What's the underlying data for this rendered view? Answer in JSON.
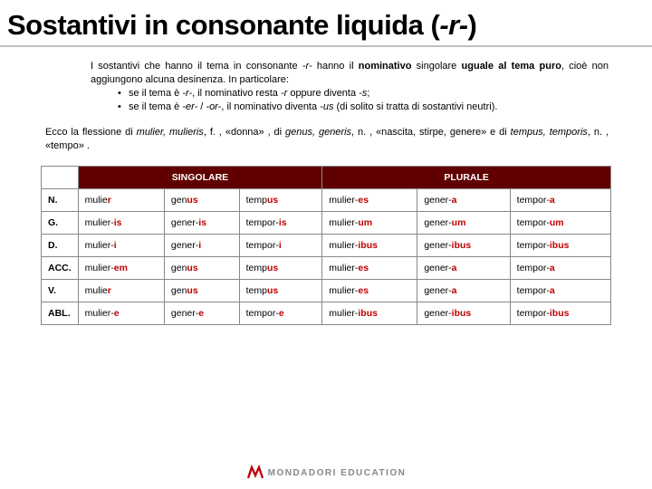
{
  "title_a": "Sostantivi in consonante liquida (",
  "title_b": "-r-",
  "title_c": ")",
  "p1_a": "I sostantivi che hanno il tema in consonante ",
  "p1_b": "-r-",
  "p1_c": " hanno il ",
  "p1_d": "nominativo",
  "p1_e": " singolare ",
  "p1_f": "uguale al tema puro",
  "p1_g": ", cioè non aggiungono alcuna desinenza. In particolare:",
  "b1_a": "se il tema è ",
  "b1_b": "-r-",
  "b1_c": ", il nominativo resta ",
  "b1_d": "-r",
  "b1_e": " oppure diventa ",
  "b1_f": "-s",
  "b1_g": ";",
  "b2_a": "se il tema è ",
  "b2_b": "-er-",
  "b2_c": " / ",
  "b2_d": "-or-",
  "b2_e": ", il nominativo diventa ",
  "b2_f": "-us",
  "b2_g": " (di solito si tratta di sostantivi neutri).",
  "p2_a": "Ecco la flessione di ",
  "p2_b": "mulier, mulieris",
  "p2_c": ", f. , «donna» , di ",
  "p2_d": "genus, generis",
  "p2_e": ", n. , «nascita, stirpe, genere» e di ",
  "p2_f": "tempus, temporis",
  "p2_g": ", n. , «tempo» .",
  "hdr_sing": "SINGOLARE",
  "hdr_plur": "PLURALE",
  "cases": [
    "N.",
    "G.",
    "D.",
    "ACC.",
    "V.",
    "ABL."
  ],
  "rows": [
    {
      "m": [
        "mulie",
        "r",
        ""
      ],
      "g": [
        "gen",
        "us",
        ""
      ],
      "t": [
        "temp",
        "us",
        ""
      ],
      "mp": [
        "mulier-",
        "es",
        ""
      ],
      "gp": [
        "gener-",
        "a",
        ""
      ],
      "tp": [
        "tempor-",
        "a",
        ""
      ]
    },
    {
      "m": [
        "mulier-",
        "is",
        ""
      ],
      "g": [
        "gener-",
        "is",
        ""
      ],
      "t": [
        "tempor-",
        "is",
        ""
      ],
      "mp": [
        "mulier-",
        "um",
        ""
      ],
      "gp": [
        "gener-",
        "um",
        ""
      ],
      "tp": [
        "tempor-",
        "um",
        ""
      ]
    },
    {
      "m": [
        "mulier-",
        "i",
        ""
      ],
      "g": [
        "gener-",
        "i",
        ""
      ],
      "t": [
        "tempor-",
        "i",
        ""
      ],
      "mp": [
        "mulier-",
        "ibus",
        ""
      ],
      "gp": [
        "gener-",
        "ibus",
        ""
      ],
      "tp": [
        "tempor-",
        "ibus",
        ""
      ]
    },
    {
      "m": [
        "mulier-",
        "em",
        ""
      ],
      "g": [
        "gen",
        "us",
        ""
      ],
      "t": [
        "temp",
        "us",
        ""
      ],
      "mp": [
        "mulier-",
        "es",
        ""
      ],
      "gp": [
        "gener-",
        "a",
        ""
      ],
      "tp": [
        "tempor-",
        "a",
        ""
      ]
    },
    {
      "m": [
        "mulie",
        "r",
        ""
      ],
      "g": [
        "gen",
        "us",
        ""
      ],
      "t": [
        "temp",
        "us",
        ""
      ],
      "mp": [
        "mulier-",
        "es",
        ""
      ],
      "gp": [
        "gener-",
        "a",
        ""
      ],
      "tp": [
        "tempor-",
        "a",
        ""
      ]
    },
    {
      "m": [
        "mulier-",
        "e",
        ""
      ],
      "g": [
        "gener-",
        "e",
        ""
      ],
      "t": [
        "tempor-",
        "e",
        ""
      ],
      "mp": [
        "mulier-",
        "ibus",
        ""
      ],
      "gp": [
        "gener-",
        "ibus",
        ""
      ],
      "tp": [
        "tempor-",
        "ibus",
        ""
      ]
    }
  ],
  "footer": "MONDADORI EDUCATION",
  "colors": {
    "header_bg": "#600000",
    "accent": "#c00000"
  }
}
